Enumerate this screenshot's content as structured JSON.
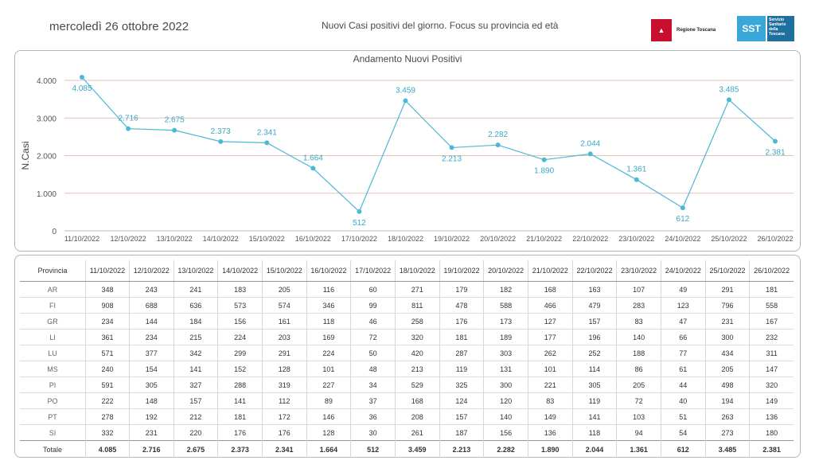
{
  "header": {
    "date": "mercoledì 26 ottobre 2022",
    "subtitle": "Nuovi Casi positivi del giorno. Focus su provincia ed età",
    "logo_region": "Regione Toscana",
    "logo_sst_mark": "SST",
    "logo_sst_text": "Servizio Sanitario della Toscana"
  },
  "colors": {
    "line": "#4db8d6",
    "grid": "#e2c3b3",
    "label": "#3aa7c7"
  },
  "chart_data": {
    "type": "line",
    "title": "Andamento Nuovi Positivi",
    "ylabel": "N.Casi",
    "xlabel": "",
    "ylim": [
      0,
      4000
    ],
    "yticks": [
      "0",
      "1.000",
      "2.000",
      "3.000",
      "4.000"
    ],
    "ytick_values": [
      0,
      1000,
      2000,
      3000,
      4000
    ],
    "categories": [
      "11/10/2022",
      "12/10/2022",
      "13/10/2022",
      "14/10/2022",
      "15/10/2022",
      "16/10/2022",
      "17/10/2022",
      "18/10/2022",
      "19/10/2022",
      "20/10/2022",
      "21/10/2022",
      "22/10/2022",
      "23/10/2022",
      "24/10/2022",
      "25/10/2022",
      "26/10/2022"
    ],
    "values": [
      4085,
      2716,
      2675,
      2373,
      2341,
      1664,
      512,
      3459,
      2213,
      2282,
      1890,
      2044,
      1361,
      612,
      3485,
      2381
    ],
    "data_labels": [
      "4.085",
      "2.716",
      "2.675",
      "2.373",
      "2.341",
      "1.664",
      "512",
      "3.459",
      "2.213",
      "2.282",
      "1.890",
      "2.044",
      "1.361",
      "612",
      "3.485",
      "2.381"
    ],
    "label_positions": [
      "below",
      "above",
      "above",
      "above",
      "above",
      "above",
      "below",
      "above",
      "below",
      "above",
      "below",
      "above",
      "above",
      "below",
      "above",
      "below"
    ],
    "grid": true
  },
  "table": {
    "corner_header": "Provincia",
    "columns": [
      "11/10/2022",
      "12/10/2022",
      "13/10/2022",
      "14/10/2022",
      "15/10/2022",
      "16/10/2022",
      "17/10/2022",
      "18/10/2022",
      "19/10/2022",
      "20/10/2022",
      "21/10/2022",
      "22/10/2022",
      "23/10/2022",
      "24/10/2022",
      "25/10/2022",
      "26/10/2022"
    ],
    "rows": [
      {
        "name": "AR",
        "values": [
          "348",
          "243",
          "241",
          "183",
          "205",
          "116",
          "60",
          "271",
          "179",
          "182",
          "168",
          "163",
          "107",
          "49",
          "291",
          "181"
        ]
      },
      {
        "name": "FI",
        "values": [
          "908",
          "688",
          "636",
          "573",
          "574",
          "346",
          "99",
          "811",
          "478",
          "588",
          "466",
          "479",
          "283",
          "123",
          "796",
          "558"
        ]
      },
      {
        "name": "GR",
        "values": [
          "234",
          "144",
          "184",
          "156",
          "161",
          "118",
          "46",
          "258",
          "176",
          "173",
          "127",
          "157",
          "83",
          "47",
          "231",
          "167"
        ]
      },
      {
        "name": "LI",
        "values": [
          "361",
          "234",
          "215",
          "224",
          "203",
          "169",
          "72",
          "320",
          "181",
          "189",
          "177",
          "196",
          "140",
          "66",
          "300",
          "232"
        ]
      },
      {
        "name": "LU",
        "values": [
          "571",
          "377",
          "342",
          "299",
          "291",
          "224",
          "50",
          "420",
          "287",
          "303",
          "262",
          "252",
          "188",
          "77",
          "434",
          "311"
        ]
      },
      {
        "name": "MS",
        "values": [
          "240",
          "154",
          "141",
          "152",
          "128",
          "101",
          "48",
          "213",
          "119",
          "131",
          "101",
          "114",
          "86",
          "61",
          "205",
          "147"
        ]
      },
      {
        "name": "PI",
        "values": [
          "591",
          "305",
          "327",
          "288",
          "319",
          "227",
          "34",
          "529",
          "325",
          "300",
          "221",
          "305",
          "205",
          "44",
          "498",
          "320"
        ]
      },
      {
        "name": "PO",
        "values": [
          "222",
          "148",
          "157",
          "141",
          "112",
          "89",
          "37",
          "168",
          "124",
          "120",
          "83",
          "119",
          "72",
          "40",
          "194",
          "149"
        ]
      },
      {
        "name": "PT",
        "values": [
          "278",
          "192",
          "212",
          "181",
          "172",
          "146",
          "36",
          "208",
          "157",
          "140",
          "149",
          "141",
          "103",
          "51",
          "263",
          "136"
        ]
      },
      {
        "name": "SI",
        "values": [
          "332",
          "231",
          "220",
          "176",
          "176",
          "128",
          "30",
          "261",
          "187",
          "156",
          "136",
          "118",
          "94",
          "54",
          "273",
          "180"
        ]
      }
    ],
    "total": {
      "name": "Totale",
      "values": [
        "4.085",
        "2.716",
        "2.675",
        "2.373",
        "2.341",
        "1.664",
        "512",
        "3.459",
        "2.213",
        "2.282",
        "1.890",
        "2.044",
        "1.361",
        "612",
        "3.485",
        "2.381"
      ]
    }
  }
}
